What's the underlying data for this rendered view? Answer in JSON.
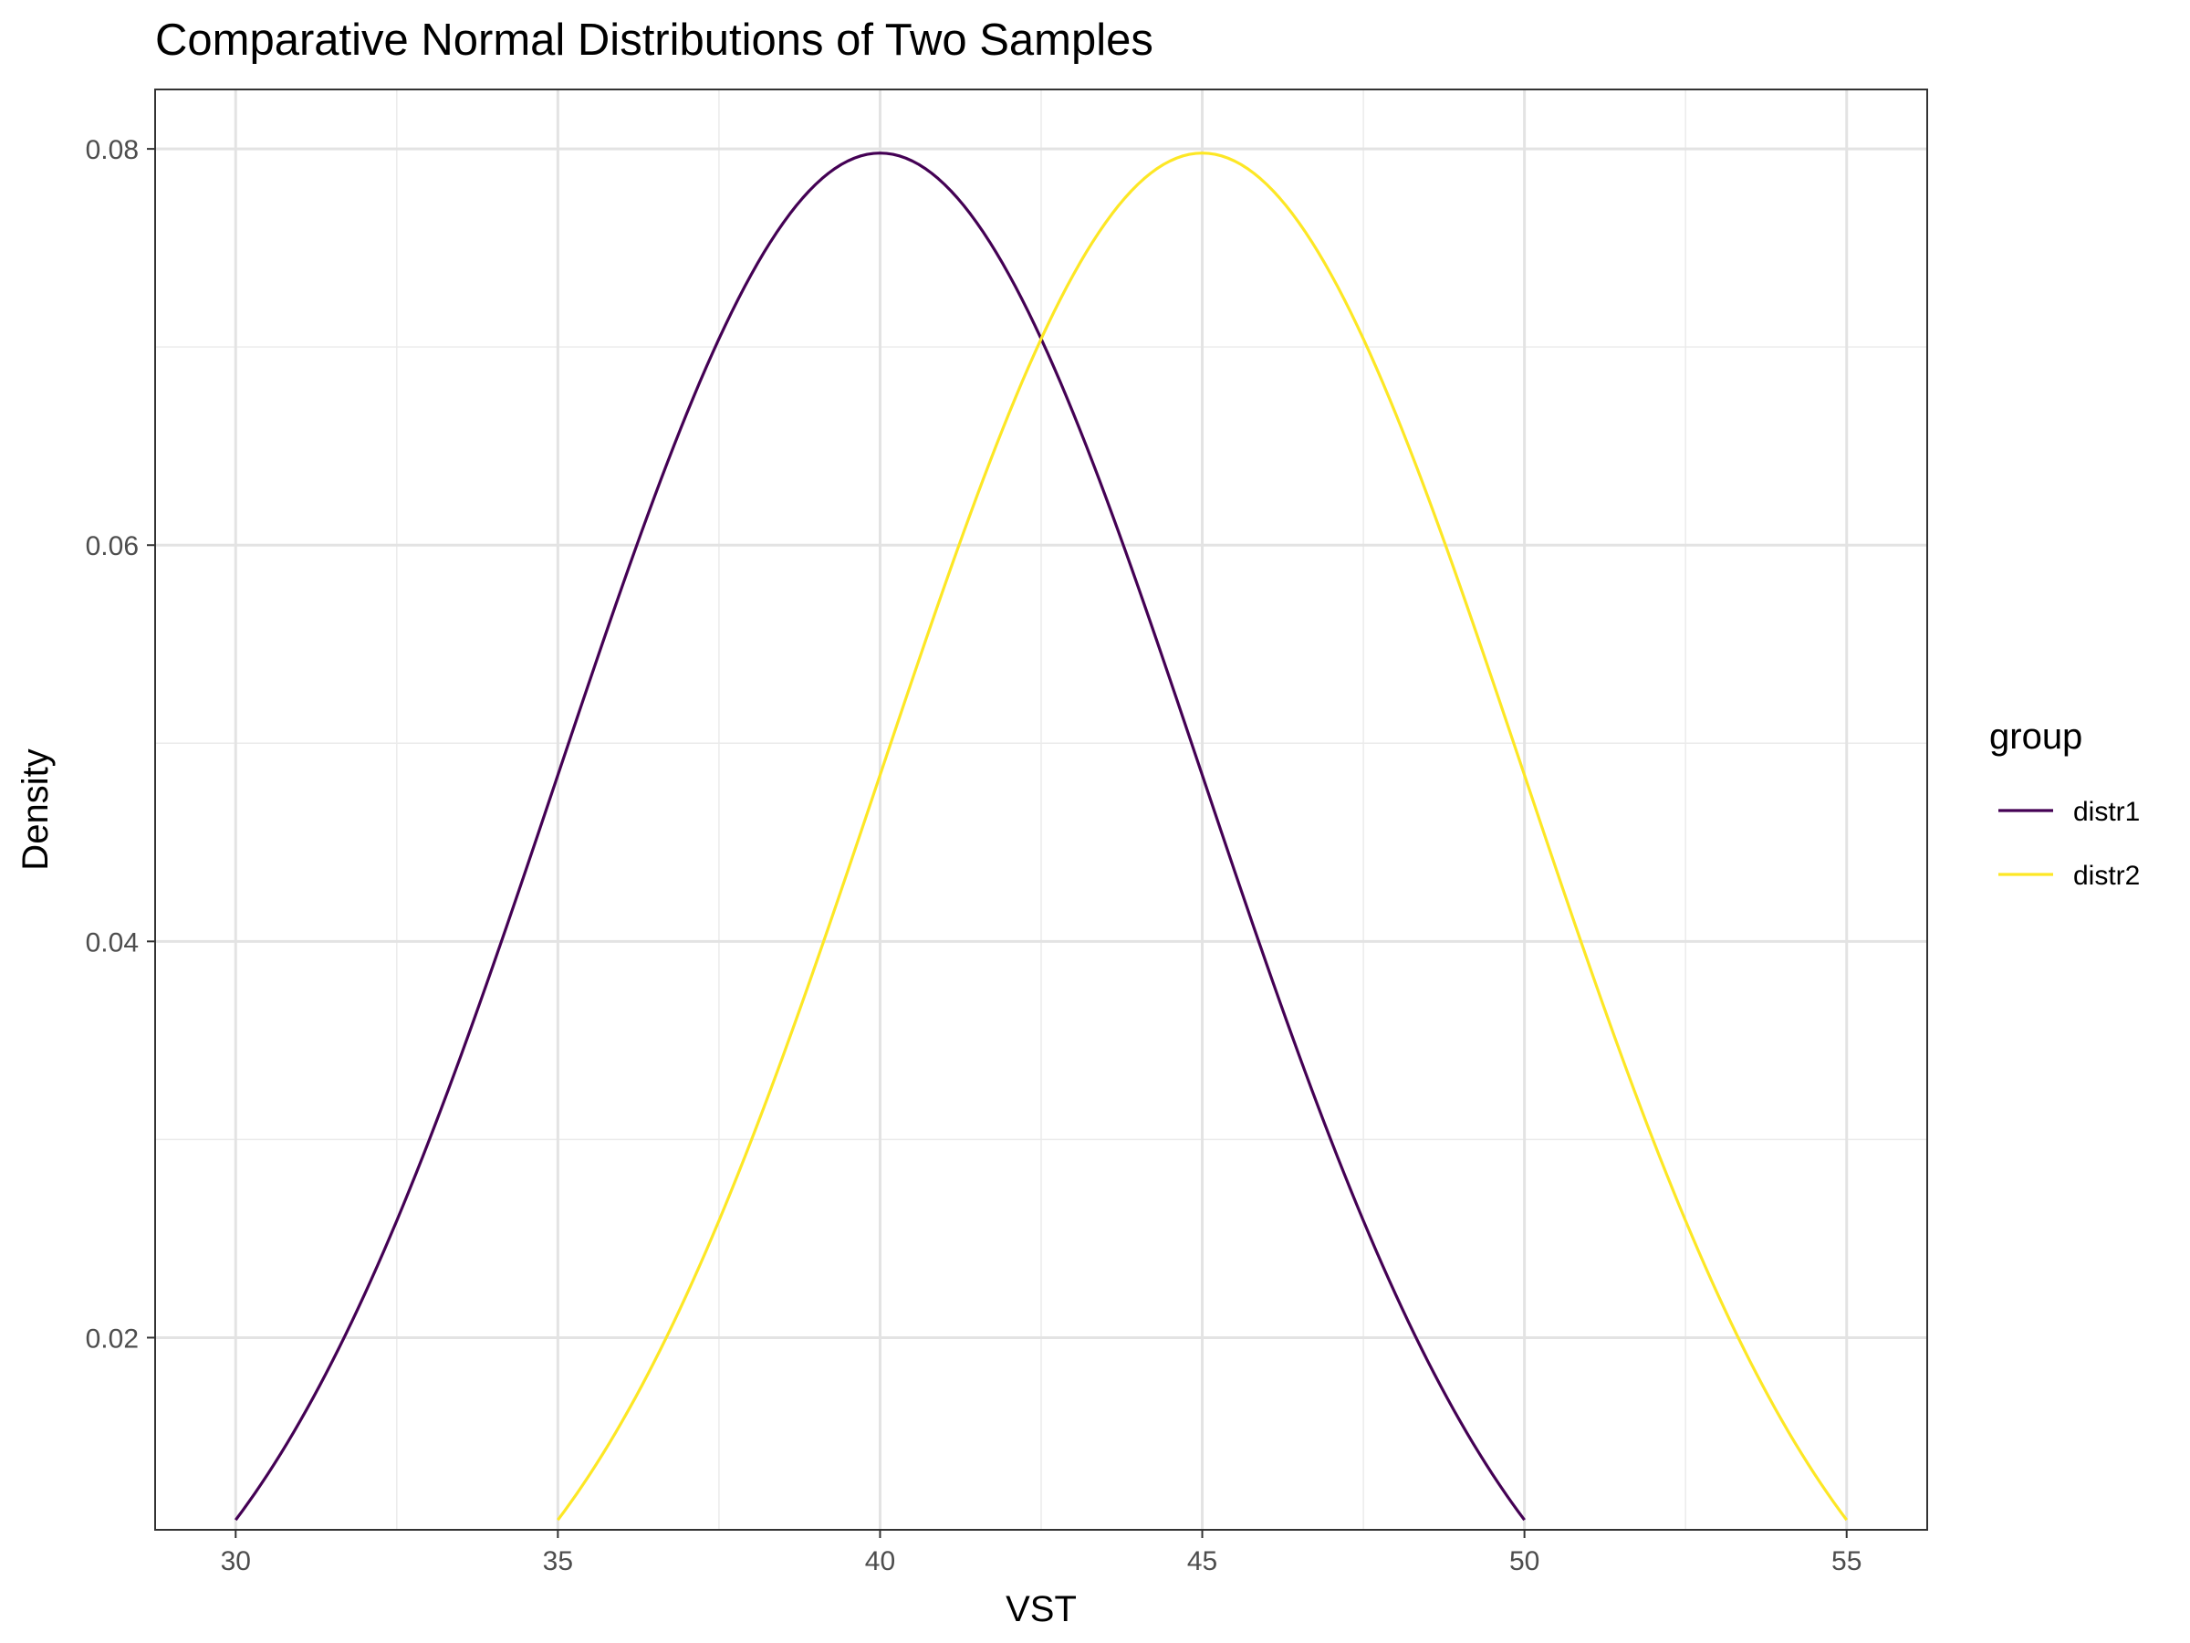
{
  "chart_data": {
    "type": "line",
    "title": "Comparative Normal Distributions of Two Samples",
    "xlabel": "VST",
    "ylabel": "Density",
    "xlim": [
      28.75,
      56.25
    ],
    "ylim": [
      0.0103,
      0.083
    ],
    "x_ticks": [
      30,
      35,
      40,
      45,
      50,
      55
    ],
    "x_tick_labels": [
      "30",
      "35",
      "40",
      "45",
      "50",
      "55"
    ],
    "y_ticks": [
      0.02,
      0.04,
      0.06,
      0.08
    ],
    "y_tick_labels": [
      "0.02",
      "0.04",
      "0.06",
      "0.08"
    ],
    "grid": true,
    "legend": {
      "title": "group",
      "position": "right"
    },
    "series": [
      {
        "name": "distr1",
        "color": "#440154",
        "mean": 40,
        "sd": 5,
        "x": [
          30,
          31,
          32,
          33,
          34,
          35,
          36,
          37,
          38,
          39,
          40,
          41,
          42,
          43,
          44,
          45,
          46,
          47,
          48,
          49,
          50
        ],
        "y": [
          0.0108,
          0.0158,
          0.0223,
          0.0299,
          0.0388,
          0.0484,
          0.0579,
          0.0666,
          0.0737,
          0.0782,
          0.0798,
          0.0782,
          0.0737,
          0.0666,
          0.0579,
          0.0484,
          0.0388,
          0.0299,
          0.0223,
          0.0158,
          0.0108
        ]
      },
      {
        "name": "distr2",
        "color": "#fde725",
        "mean": 45,
        "sd": 5,
        "x": [
          35,
          36,
          37,
          38,
          39,
          40,
          41,
          42,
          43,
          44,
          45,
          46,
          47,
          48,
          49,
          50,
          51,
          52,
          53,
          54,
          55
        ],
        "y": [
          0.0108,
          0.0158,
          0.0223,
          0.0299,
          0.0388,
          0.0484,
          0.0579,
          0.0666,
          0.0737,
          0.0782,
          0.0798,
          0.0782,
          0.0737,
          0.0666,
          0.0579,
          0.0484,
          0.0388,
          0.0299,
          0.0223,
          0.0158,
          0.0108
        ]
      }
    ]
  }
}
